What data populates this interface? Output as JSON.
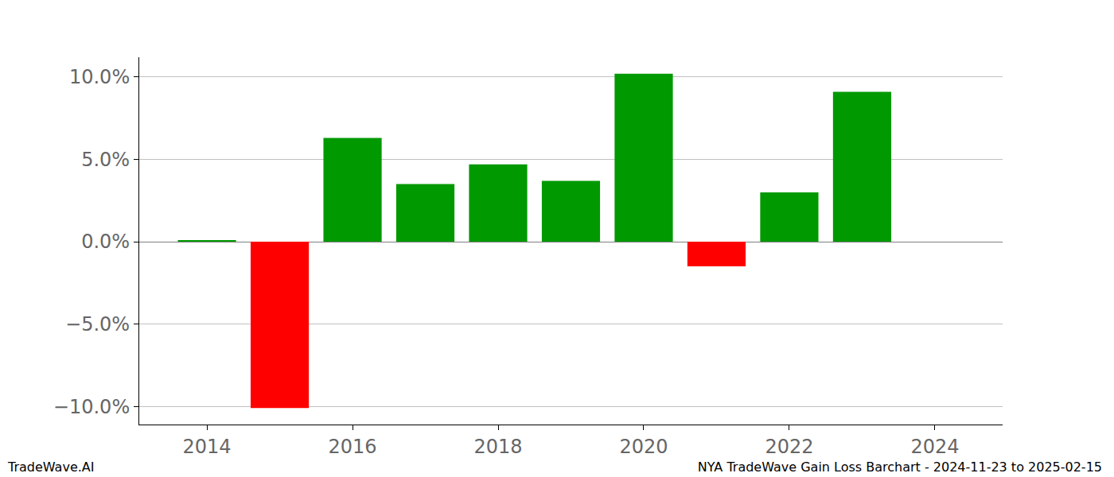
{
  "chart_data": {
    "type": "bar",
    "title": "NYA TradeWave Gain Loss Barchart - 2024-11-23 to 2025-02-15",
    "annotations": [
      "TradeWave.AI"
    ],
    "x": [
      2014,
      2015,
      2016,
      2017,
      2018,
      2019,
      2020,
      2021,
      2022,
      2023
    ],
    "values": [
      0.1,
      -10.1,
      6.3,
      3.5,
      4.7,
      3.7,
      10.2,
      -1.5,
      3.0,
      9.1
    ],
    "colors": [
      "#009900",
      "#ff0000",
      "#009900",
      "#009900",
      "#009900",
      "#009900",
      "#009900",
      "#ff0000",
      "#009900",
      "#009900"
    ],
    "xlim": [
      2013.07,
      2024.93
    ],
    "xticks": [
      2014,
      2016,
      2018,
      2020,
      2022,
      2024
    ],
    "ylim": [
      -11.1,
      11.2
    ],
    "yticks": [
      {
        "value": -10,
        "label": "−10.0%"
      },
      {
        "value": -5,
        "label": "−5.0%"
      },
      {
        "value": 0,
        "label": "0.0%"
      },
      {
        "value": 5,
        "label": "5.0%"
      },
      {
        "value": 10,
        "label": "10.0%"
      }
    ],
    "grid": true
  }
}
